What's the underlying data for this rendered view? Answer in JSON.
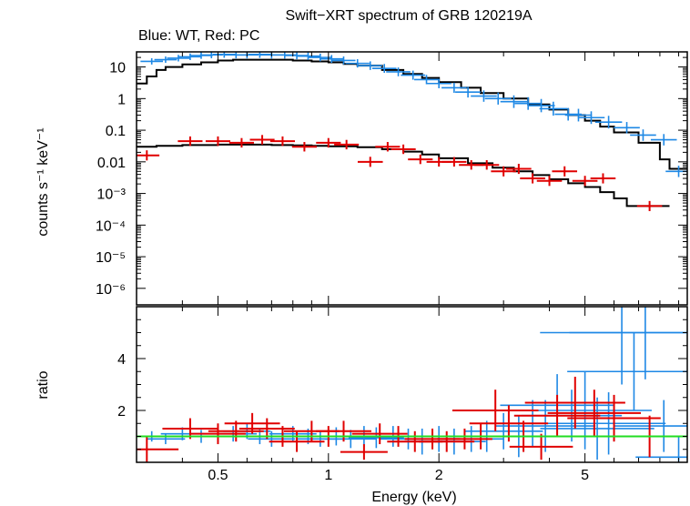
{
  "chart_data": [
    {
      "type": "scatter",
      "title": "Swift−XRT spectrum of GRB 120219A",
      "subtitle": "Blue: WT, Red: PC",
      "xlabel": "",
      "ylabel": "counts s⁻¹ keV⁻¹",
      "xscale": "log",
      "yscale": "log",
      "xlim": [
        0.3,
        9.5
      ],
      "ylim": [
        3e-07,
        30
      ],
      "y_ticks": [
        {
          "value": 10,
          "label": "10"
        },
        {
          "value": 1,
          "label": "1"
        },
        {
          "value": 0.1,
          "label": "0.1"
        },
        {
          "value": 0.01,
          "label": "0.01"
        },
        {
          "value": 0.001,
          "label": "10⁻³"
        },
        {
          "value": 0.0001,
          "label": "10⁻⁴"
        },
        {
          "value": 1e-05,
          "label": "10⁻⁵"
        },
        {
          "value": 1e-06,
          "label": "10⁻⁶"
        }
      ],
      "colors": {
        "wt": "#1e88e5",
        "pc": "#e00000",
        "model": "#000000"
      },
      "series": [
        {
          "color": "#1e88e5",
          "points": [
            [
              0.33,
              15,
              0.01
            ],
            [
              0.36,
              17,
              0.01
            ],
            [
              0.39,
              19,
              0.012
            ],
            [
              0.42,
              21,
              0.012
            ],
            [
              0.45,
              23,
              0.013
            ],
            [
              0.48,
              24,
              0.013
            ],
            [
              0.52,
              25,
              0.014
            ],
            [
              0.56,
              24,
              0.014
            ],
            [
              0.6,
              24,
              0.015
            ],
            [
              0.65,
              25,
              0.016
            ],
            [
              0.7,
              24,
              0.017
            ],
            [
              0.76,
              24,
              0.018
            ],
            [
              0.82,
              23,
              0.019
            ],
            [
              0.88,
              22,
              0.02
            ],
            [
              0.95,
              20,
              0.021
            ],
            [
              1.02,
              18,
              0.022
            ],
            [
              1.1,
              16,
              0.024
            ],
            [
              1.2,
              13,
              0.026
            ],
            [
              1.3,
              11,
              0.028
            ],
            [
              1.42,
              9,
              0.03
            ],
            [
              1.55,
              7,
              0.03
            ],
            [
              1.7,
              5.5,
              0.032
            ],
            [
              1.85,
              4,
              0.034
            ],
            [
              2.0,
              3,
              0.035
            ],
            [
              2.2,
              2.2,
              0.04
            ],
            [
              2.4,
              1.6,
              0.045
            ],
            [
              2.65,
              1.2,
              0.05
            ],
            [
              2.9,
              1.0,
              0.055
            ],
            [
              3.2,
              0.8,
              0.06
            ],
            [
              3.5,
              0.7,
              0.06
            ],
            [
              3.8,
              0.6,
              0.065
            ],
            [
              4.1,
              0.48,
              0.07
            ],
            [
              4.5,
              0.32,
              0.06
            ],
            [
              4.8,
              0.3,
              0.06
            ],
            [
              5.2,
              0.25,
              0.06
            ],
            [
              5.8,
              0.18,
              0.06
            ],
            [
              6.5,
              0.12,
              0.05
            ],
            [
              7.2,
              0.07,
              0.05
            ],
            [
              8.2,
              0.05,
              0.05
            ],
            [
              9.0,
              0.005,
              0.05
            ]
          ]
        },
        {
          "color": "#e00000",
          "points": [
            [
              0.32,
              0.016,
              0.04
            ],
            [
              0.42,
              0.045,
              0.035
            ],
            [
              0.5,
              0.045,
              0.035
            ],
            [
              0.58,
              0.04,
              0.035
            ],
            [
              0.66,
              0.05,
              0.035
            ],
            [
              0.75,
              0.045,
              0.035
            ],
            [
              0.86,
              0.03,
              0.035
            ],
            [
              1.0,
              0.04,
              0.035
            ],
            [
              1.12,
              0.035,
              0.035
            ],
            [
              1.3,
              0.01,
              0.04
            ],
            [
              1.45,
              0.03,
              0.035
            ],
            [
              1.6,
              0.025,
              0.035
            ],
            [
              1.78,
              0.012,
              0.035
            ],
            [
              2.0,
              0.01,
              0.035
            ],
            [
              2.2,
              0.01,
              0.035
            ],
            [
              2.45,
              0.008,
              0.035
            ],
            [
              2.7,
              0.008,
              0.035
            ],
            [
              3.0,
              0.005,
              0.04
            ],
            [
              3.3,
              0.006,
              0.04
            ],
            [
              3.6,
              0.003,
              0.04
            ],
            [
              4.0,
              0.0025,
              0.04
            ],
            [
              4.4,
              0.005,
              0.04
            ],
            [
              5.0,
              0.0025,
              0.04
            ],
            [
              5.6,
              0.003,
              0.04
            ],
            [
              7.5,
              0.0004,
              0.04
            ]
          ]
        }
      ],
      "model_lines": [
        [
          [
            0.3,
            3
          ],
          [
            0.32,
            5
          ],
          [
            0.34,
            8
          ],
          [
            0.36,
            10
          ],
          [
            0.4,
            12
          ],
          [
            0.45,
            14
          ],
          [
            0.5,
            16
          ],
          [
            0.55,
            17
          ],
          [
            0.6,
            17
          ],
          [
            0.7,
            17
          ],
          [
            0.8,
            16
          ],
          [
            0.9,
            15
          ],
          [
            1.0,
            14
          ],
          [
            1.1,
            12.5
          ],
          [
            1.2,
            11
          ],
          [
            1.4,
            8
          ],
          [
            1.6,
            6
          ],
          [
            1.8,
            4.5
          ],
          [
            2.0,
            3.3
          ],
          [
            2.3,
            2.2
          ],
          [
            2.6,
            1.5
          ],
          [
            3.0,
            1.0
          ],
          [
            3.5,
            0.65
          ],
          [
            4.0,
            0.45
          ],
          [
            4.5,
            0.3
          ],
          [
            5.0,
            0.2
          ],
          [
            5.5,
            0.13
          ],
          [
            6.0,
            0.085
          ],
          [
            7.0,
            0.04
          ],
          [
            8.0,
            0.012
          ],
          [
            8.5,
            0.006
          ],
          [
            9.5,
            0.006
          ]
        ],
        [
          [
            0.3,
            0.03
          ],
          [
            0.34,
            0.032
          ],
          [
            0.4,
            0.034
          ],
          [
            0.5,
            0.035
          ],
          [
            0.6,
            0.035
          ],
          [
            0.7,
            0.034
          ],
          [
            0.8,
            0.033
          ],
          [
            0.9,
            0.032
          ],
          [
            1.0,
            0.031
          ],
          [
            1.2,
            0.029
          ],
          [
            1.4,
            0.025
          ],
          [
            1.6,
            0.021
          ],
          [
            1.8,
            0.017
          ],
          [
            2.0,
            0.013
          ],
          [
            2.4,
            0.009
          ],
          [
            2.8,
            0.0065
          ],
          [
            3.2,
            0.005
          ],
          [
            3.6,
            0.0038
          ],
          [
            4.0,
            0.0028
          ],
          [
            4.5,
            0.0021
          ],
          [
            5.0,
            0.0016
          ],
          [
            5.5,
            0.0011
          ],
          [
            6.0,
            0.0007
          ],
          [
            6.5,
            0.0004
          ],
          [
            8.5,
            0.0004
          ]
        ]
      ]
    },
    {
      "type": "scatter",
      "xlabel": "Energy (keV)",
      "ylabel": "ratio",
      "xscale": "log",
      "xlim": [
        0.3,
        9.5
      ],
      "ylim": [
        0,
        6
      ],
      "x_ticks": [
        {
          "value": 0.5,
          "label": "0.5"
        },
        {
          "value": 1,
          "label": "1"
        },
        {
          "value": 2,
          "label": "2"
        },
        {
          "value": 5,
          "label": "5"
        }
      ],
      "y_ticks": [
        {
          "value": 2,
          "label": "2"
        },
        {
          "value": 4,
          "label": "4"
        }
      ],
      "reference_line": {
        "value": 1,
        "color": "#22dd22"
      },
      "series": [
        {
          "color": "#1e88e5",
          "points": [
            [
              0.33,
              1.0,
              0.2
            ],
            [
              0.36,
              0.9,
              0.2
            ],
            [
              0.4,
              1.1,
              0.25
            ],
            [
              0.45,
              1.0,
              0.25
            ],
            [
              0.5,
              1.0,
              0.25
            ],
            [
              0.55,
              1.1,
              0.3
            ],
            [
              0.6,
              1.2,
              0.3
            ],
            [
              0.65,
              1.0,
              0.3
            ],
            [
              0.7,
              0.9,
              0.3
            ],
            [
              0.75,
              1.0,
              0.3
            ],
            [
              0.8,
              1.1,
              0.3
            ],
            [
              0.88,
              1.0,
              0.3
            ],
            [
              0.95,
              0.9,
              0.3
            ],
            [
              1.05,
              1.0,
              0.35
            ],
            [
              1.15,
              0.9,
              0.35
            ],
            [
              1.25,
              1.0,
              0.4
            ],
            [
              1.35,
              0.95,
              0.4
            ],
            [
              1.5,
              1.0,
              0.4
            ],
            [
              1.65,
              0.9,
              0.4
            ],
            [
              1.8,
              0.8,
              0.5
            ],
            [
              2.0,
              0.9,
              0.5
            ],
            [
              2.2,
              0.8,
              0.5
            ],
            [
              2.45,
              0.9,
              0.5
            ],
            [
              2.7,
              1.0,
              0.6
            ],
            [
              3.0,
              1.2,
              0.7
            ],
            [
              3.3,
              1.0,
              0.8
            ],
            [
              3.6,
              1.5,
              0.9
            ],
            [
              3.9,
              1.4,
              1.0
            ],
            [
              4.2,
              2.2,
              1.2
            ],
            [
              4.6,
              1.8,
              1.0
            ],
            [
              5.0,
              2.0,
              1.5
            ],
            [
              5.4,
              1.3,
              1.2
            ],
            [
              5.8,
              1.5,
              1.2
            ],
            [
              6.3,
              5.0,
              2.0
            ],
            [
              6.8,
              3.5,
              1.5
            ],
            [
              7.3,
              5.0,
              1.8
            ],
            [
              8.2,
              1.4,
              1.0
            ],
            [
              9.0,
              0.2,
              0.8
            ]
          ]
        },
        {
          "color": "#e00000",
          "points": [
            [
              0.32,
              0.5,
              0.5
            ],
            [
              0.42,
              1.3,
              0.4
            ],
            [
              0.5,
              1.1,
              0.4
            ],
            [
              0.56,
              1.2,
              0.4
            ],
            [
              0.62,
              1.5,
              0.4
            ],
            [
              0.68,
              1.3,
              0.4
            ],
            [
              0.75,
              1.0,
              0.4
            ],
            [
              0.82,
              0.8,
              0.4
            ],
            [
              0.9,
              1.2,
              0.4
            ],
            [
              1.0,
              1.0,
              0.4
            ],
            [
              1.1,
              1.2,
              0.4
            ],
            [
              1.25,
              0.4,
              0.3
            ],
            [
              1.38,
              1.1,
              0.4
            ],
            [
              1.55,
              1.0,
              0.4
            ],
            [
              1.72,
              0.8,
              0.4
            ],
            [
              1.92,
              0.9,
              0.4
            ],
            [
              2.1,
              0.8,
              0.4
            ],
            [
              2.35,
              0.9,
              0.4
            ],
            [
              2.6,
              1.0,
              0.5
            ],
            [
              2.85,
              2.0,
              0.8
            ],
            [
              3.1,
              1.5,
              0.7
            ],
            [
              3.4,
              1.0,
              0.6
            ],
            [
              3.8,
              0.6,
              0.5
            ],
            [
              4.2,
              1.8,
              0.8
            ],
            [
              4.7,
              2.3,
              1.0
            ],
            [
              5.3,
              1.9,
              0.9
            ],
            [
              6.0,
              1.7,
              0.9
            ],
            [
              7.5,
              1.0,
              0.8
            ]
          ]
        }
      ]
    }
  ]
}
